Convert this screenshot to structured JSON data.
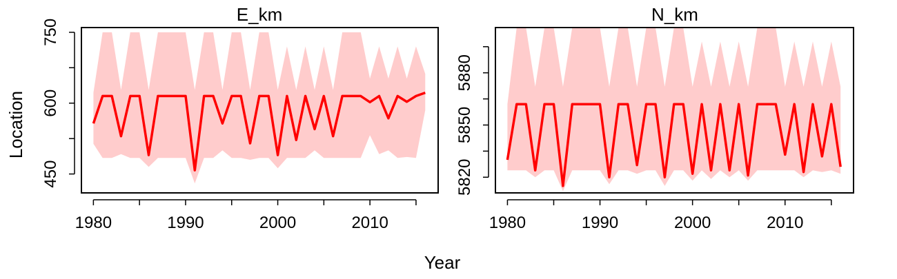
{
  "figure": {
    "xlabel": "Year",
    "ylabel": "Location"
  },
  "colors": {
    "line": "#ff0000",
    "band": "#ffcccc",
    "frame": "#000000"
  },
  "chart_data": [
    {
      "type": "line",
      "title": "E_km",
      "xlabel": "Year",
      "ylabel": "Location",
      "xlim": [
        1978.7,
        2017.4
      ],
      "ylim": [
        410,
        760
      ],
      "xticks": [
        1980,
        1985,
        1990,
        1995,
        2000,
        2005,
        2010,
        2015
      ],
      "xtick_labels": [
        "1980",
        "",
        "1990",
        "",
        "2000",
        "",
        "2010",
        ""
      ],
      "yticks": [
        450,
        525,
        600,
        675,
        750
      ],
      "ytick_labels": [
        "450",
        "",
        "600",
        "",
        "750"
      ],
      "x": [
        1980,
        1981,
        1982,
        1983,
        1984,
        1985,
        1986,
        1987,
        1988,
        1989,
        1990,
        1991,
        1992,
        1993,
        1994,
        1995,
        1996,
        1997,
        1998,
        1999,
        2000,
        2001,
        2002,
        2003,
        2004,
        2005,
        2006,
        2007,
        2008,
        2009,
        2010,
        2011,
        2012,
        2013,
        2014,
        2015,
        2016
      ],
      "series": [
        {
          "name": "estimate",
          "values": [
            557,
            615,
            615,
            530,
            615,
            615,
            490,
            615,
            615,
            615,
            615,
            458,
            615,
            615,
            557,
            615,
            615,
            515,
            615,
            615,
            490,
            615,
            522,
            615,
            545,
            615,
            530,
            615,
            615,
            615,
            602,
            615,
            568,
            615,
            603,
            615,
            622
          ]
        },
        {
          "name": "lower",
          "values": [
            514,
            484,
            484,
            492,
            484,
            484,
            465,
            484,
            484,
            484,
            484,
            430,
            484,
            484,
            500,
            484,
            484,
            480,
            484,
            484,
            462,
            484,
            484,
            484,
            500,
            484,
            484,
            484,
            484,
            484,
            532,
            492,
            500,
            484,
            486,
            484,
            585
          ]
        },
        {
          "name": "upper",
          "values": [
            622,
            750,
            750,
            628,
            750,
            750,
            628,
            750,
            750,
            750,
            750,
            628,
            750,
            750,
            628,
            750,
            750,
            628,
            750,
            750,
            628,
            720,
            628,
            720,
            628,
            720,
            628,
            750,
            750,
            750,
            652,
            720,
            652,
            720,
            652,
            720,
            662
          ]
        }
      ]
    },
    {
      "type": "line",
      "title": "N_km",
      "xlabel": "Year",
      "ylabel": "",
      "xlim": [
        1978.7,
        2017.4
      ],
      "ylim": [
        5811,
        5906
      ],
      "xticks": [
        1980,
        1985,
        1990,
        1995,
        2000,
        2005,
        2010,
        2015
      ],
      "xtick_labels": [
        "1980",
        "",
        "1990",
        "",
        "2000",
        "",
        "2010",
        ""
      ],
      "yticks": [
        5820,
        5835,
        5850,
        5865,
        5880,
        5895
      ],
      "ytick_labels": [
        "5820",
        "",
        "5850",
        "",
        "5880",
        ""
      ],
      "x": [
        1980,
        1981,
        1982,
        1983,
        1984,
        1985,
        1986,
        1987,
        1988,
        1989,
        1990,
        1991,
        1992,
        1993,
        1994,
        1995,
        1996,
        1997,
        1998,
        1999,
        2000,
        2001,
        2002,
        2003,
        2004,
        2005,
        2006,
        2007,
        2008,
        2009,
        2010,
        2011,
        2012,
        2013,
        2014,
        2015,
        2016
      ],
      "series": [
        {
          "name": "estimate",
          "values": [
            5830,
            5862,
            5862,
            5824,
            5862,
            5862,
            5815,
            5862,
            5862,
            5862,
            5862,
            5820,
            5862,
            5862,
            5827,
            5862,
            5862,
            5820,
            5862,
            5862,
            5822,
            5862,
            5824,
            5862,
            5824,
            5862,
            5821,
            5862,
            5862,
            5862,
            5833,
            5862,
            5823,
            5862,
            5832,
            5862,
            5826
          ]
        },
        {
          "name": "lower",
          "values": [
            5824,
            5824,
            5824,
            5820,
            5824,
            5824,
            5812,
            5824,
            5824,
            5824,
            5824,
            5816,
            5824,
            5824,
            5822,
            5824,
            5824,
            5815,
            5824,
            5824,
            5818,
            5824,
            5819,
            5824,
            5820,
            5824,
            5818,
            5824,
            5824,
            5824,
            5824,
            5824,
            5820,
            5824,
            5823,
            5824,
            5822
          ]
        },
        {
          "name": "upper",
          "values": [
            5862,
            5906,
            5906,
            5872,
            5906,
            5906,
            5872,
            5906,
            5906,
            5906,
            5906,
            5872,
            5906,
            5906,
            5872,
            5906,
            5906,
            5872,
            5906,
            5906,
            5872,
            5898,
            5872,
            5898,
            5872,
            5898,
            5872,
            5906,
            5906,
            5906,
            5872,
            5898,
            5872,
            5898,
            5872,
            5898,
            5872
          ]
        }
      ]
    }
  ]
}
